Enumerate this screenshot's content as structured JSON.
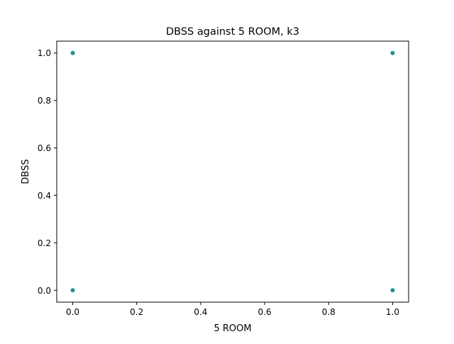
{
  "chart_data": {
    "type": "scatter",
    "title": "DBSS against 5 ROOM, k3",
    "xlabel": "5 ROOM",
    "ylabel": "DBSS",
    "xlim": [
      -0.05,
      1.05
    ],
    "ylim": [
      -0.05,
      1.05
    ],
    "xticks": [
      0.0,
      0.2,
      0.4,
      0.6,
      0.8,
      1.0
    ],
    "yticks": [
      0.0,
      0.2,
      0.4,
      0.6,
      0.8,
      1.0
    ],
    "xtick_labels": [
      "0.0",
      "0.2",
      "0.4",
      "0.6",
      "0.8",
      "1.0"
    ],
    "ytick_labels": [
      "0.0",
      "0.2",
      "0.4",
      "0.6",
      "0.8",
      "1.0"
    ],
    "grid": false,
    "legend": false,
    "marker_color": "#21918c",
    "points": [
      {
        "x": 0,
        "y": 1
      },
      {
        "x": 0,
        "y": 0
      },
      {
        "x": 1,
        "y": 1
      },
      {
        "x": 1,
        "y": 0
      }
    ]
  }
}
